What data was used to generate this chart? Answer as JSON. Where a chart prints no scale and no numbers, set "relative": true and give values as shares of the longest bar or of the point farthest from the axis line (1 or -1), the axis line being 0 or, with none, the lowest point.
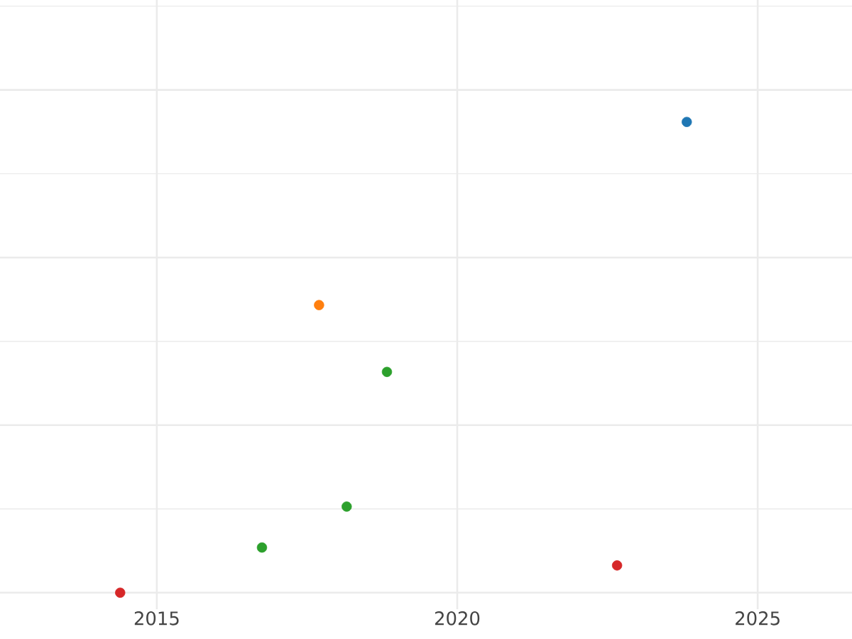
{
  "chart_data": {
    "type": "scatter",
    "relative": true,
    "grid": true,
    "xlim": [
      2012.39,
      2026.57
    ],
    "xticks": [
      2015,
      2020,
      2025
    ],
    "tick_labels": "x",
    "series": [
      {
        "color": "#1f77b4",
        "x": [
          2023.82
        ],
        "values": [
          1
        ]
      },
      {
        "color": "#ff7f0e",
        "x": [
          2017.7
        ],
        "values": [
          0.611
        ]
      },
      {
        "color": "#2ca02c",
        "x": [
          2018.83,
          2018.16,
          2016.75
        ],
        "values": [
          0.469,
          0.183,
          0.096
        ]
      },
      {
        "color": "#d62728",
        "x": [
          2014.39,
          2022.66
        ],
        "values": [
          0,
          0.058
        ]
      }
    ]
  }
}
